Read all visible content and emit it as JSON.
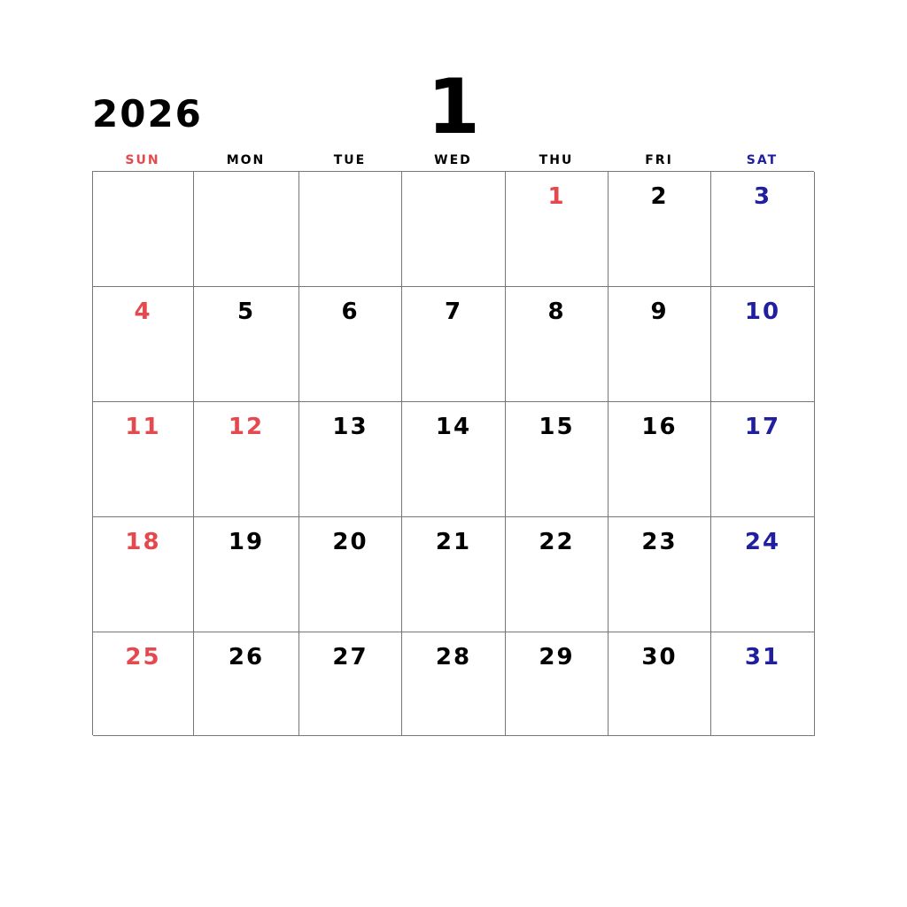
{
  "year": "2026",
  "month": "1",
  "colors": {
    "sunday": "#e5484d",
    "saturday": "#1f1f9f",
    "weekday": "#000000"
  },
  "weekdays": [
    {
      "label": "SUN",
      "type": "sunday"
    },
    {
      "label": "MON",
      "type": "weekday"
    },
    {
      "label": "TUE",
      "type": "weekday"
    },
    {
      "label": "WED",
      "type": "weekday"
    },
    {
      "label": "THU",
      "type": "weekday"
    },
    {
      "label": "FRI",
      "type": "weekday"
    },
    {
      "label": "SAT",
      "type": "saturday"
    }
  ],
  "weeks": [
    [
      {
        "day": "",
        "type": "empty"
      },
      {
        "day": "",
        "type": "empty"
      },
      {
        "day": "",
        "type": "empty"
      },
      {
        "day": "",
        "type": "empty"
      },
      {
        "day": "1",
        "type": "sunday"
      },
      {
        "day": "2",
        "type": "weekday"
      },
      {
        "day": "3",
        "type": "saturday"
      }
    ],
    [
      {
        "day": "4",
        "type": "sunday"
      },
      {
        "day": "5",
        "type": "weekday"
      },
      {
        "day": "6",
        "type": "weekday"
      },
      {
        "day": "7",
        "type": "weekday"
      },
      {
        "day": "8",
        "type": "weekday"
      },
      {
        "day": "9",
        "type": "weekday"
      },
      {
        "day": "10",
        "type": "saturday"
      }
    ],
    [
      {
        "day": "11",
        "type": "sunday"
      },
      {
        "day": "12",
        "type": "sunday"
      },
      {
        "day": "13",
        "type": "weekday"
      },
      {
        "day": "14",
        "type": "weekday"
      },
      {
        "day": "15",
        "type": "weekday"
      },
      {
        "day": "16",
        "type": "weekday"
      },
      {
        "day": "17",
        "type": "saturday"
      }
    ],
    [
      {
        "day": "18",
        "type": "sunday"
      },
      {
        "day": "19",
        "type": "weekday"
      },
      {
        "day": "20",
        "type": "weekday"
      },
      {
        "day": "21",
        "type": "weekday"
      },
      {
        "day": "22",
        "type": "weekday"
      },
      {
        "day": "23",
        "type": "weekday"
      },
      {
        "day": "24",
        "type": "saturday"
      }
    ],
    [
      {
        "day": "25",
        "type": "sunday"
      },
      {
        "day": "26",
        "type": "weekday"
      },
      {
        "day": "27",
        "type": "weekday"
      },
      {
        "day": "28",
        "type": "weekday"
      },
      {
        "day": "29",
        "type": "weekday"
      },
      {
        "day": "30",
        "type": "weekday"
      },
      {
        "day": "31",
        "type": "saturday"
      }
    ]
  ]
}
